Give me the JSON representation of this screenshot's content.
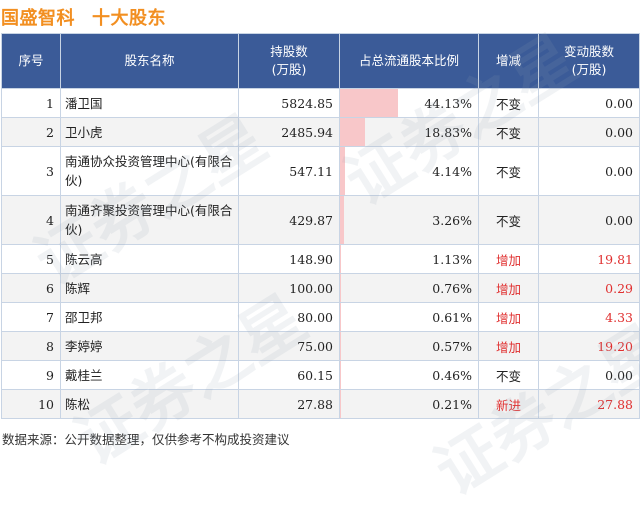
{
  "title": {
    "company": "国盛智科",
    "subtitle": "十大股东"
  },
  "headers": {
    "index": "序号",
    "name": "股东名称",
    "shares": "持股数\n(万股)",
    "ratio": "占总流通股本比例",
    "change_type": "增减",
    "change_amount": "变动股数\n(万股)"
  },
  "rows": [
    {
      "index": "1",
      "name": "潘卫国",
      "shares": "5824.85",
      "ratio_text": "44.13%",
      "ratio_value": 44.13,
      "change": "不变",
      "change_color": "#222222",
      "delta": "0.00",
      "delta_color": "#222222"
    },
    {
      "index": "2",
      "name": "卫小虎",
      "shares": "2485.94",
      "ratio_text": "18.83%",
      "ratio_value": 18.83,
      "change": "不变",
      "change_color": "#222222",
      "delta": "0.00",
      "delta_color": "#222222"
    },
    {
      "index": "3",
      "name": "南通协众投资管理中心(有限合伙)",
      "shares": "547.11",
      "ratio_text": "4.14%",
      "ratio_value": 4.14,
      "change": "不变",
      "change_color": "#222222",
      "delta": "0.00",
      "delta_color": "#222222"
    },
    {
      "index": "4",
      "name": "南通齐聚投资管理中心(有限合伙)",
      "shares": "429.87",
      "ratio_text": "3.26%",
      "ratio_value": 3.26,
      "change": "不变",
      "change_color": "#222222",
      "delta": "0.00",
      "delta_color": "#222222"
    },
    {
      "index": "5",
      "name": "陈云高",
      "shares": "148.90",
      "ratio_text": "1.13%",
      "ratio_value": 1.13,
      "change": "增加",
      "change_color": "#e03030",
      "delta": "19.81",
      "delta_color": "#e03030"
    },
    {
      "index": "6",
      "name": "陈辉",
      "shares": "100.00",
      "ratio_text": "0.76%",
      "ratio_value": 0.76,
      "change": "增加",
      "change_color": "#e03030",
      "delta": "0.29",
      "delta_color": "#e03030"
    },
    {
      "index": "7",
      "name": "邵卫邦",
      "shares": "80.00",
      "ratio_text": "0.61%",
      "ratio_value": 0.61,
      "change": "增加",
      "change_color": "#e03030",
      "delta": "4.33",
      "delta_color": "#e03030"
    },
    {
      "index": "8",
      "name": "李婷婷",
      "shares": "75.00",
      "ratio_text": "0.57%",
      "ratio_value": 0.57,
      "change": "增加",
      "change_color": "#e03030",
      "delta": "19.20",
      "delta_color": "#e03030"
    },
    {
      "index": "9",
      "name": "戴桂兰",
      "shares": "60.15",
      "ratio_text": "0.46%",
      "ratio_value": 0.46,
      "change": "不变",
      "change_color": "#222222",
      "delta": "0.00",
      "delta_color": "#222222"
    },
    {
      "index": "10",
      "name": "陈松",
      "shares": "27.88",
      "ratio_text": "0.21%",
      "ratio_value": 0.21,
      "change": "新进",
      "change_color": "#e03030",
      "delta": "27.88",
      "delta_color": "#e03030"
    }
  ],
  "footer": "数据来源：公开数据整理，仅供参考不构成投资建议",
  "colors": {
    "title": "#f28f21",
    "header_bg": "#3b5b98",
    "bar": "#f8c7c9",
    "increase": "#e03030"
  },
  "watermark": "证券之星"
}
